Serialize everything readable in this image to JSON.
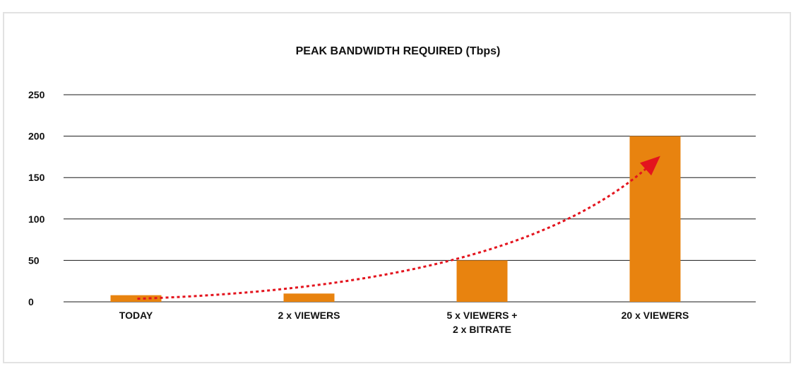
{
  "chart_data": {
    "type": "bar",
    "title": "PEAK BANDWIDTH REQUIRED (Tbps)",
    "categories": [
      [
        "TODAY"
      ],
      [
        "2 x VIEWERS"
      ],
      [
        "5 x VIEWERS +",
        "2 x BITRATE"
      ],
      [
        "20 x VIEWERS"
      ]
    ],
    "values": [
      8,
      10,
      50,
      200
    ],
    "ylim": [
      0,
      250
    ],
    "yticks": [
      "0",
      "50",
      "100",
      "150",
      "200",
      "250"
    ],
    "grid": true,
    "bar_color": "#e8830f",
    "grid_color": "#1a1a1a",
    "trend_arrow": {
      "style": "dotted",
      "color": "#e3141e"
    }
  }
}
